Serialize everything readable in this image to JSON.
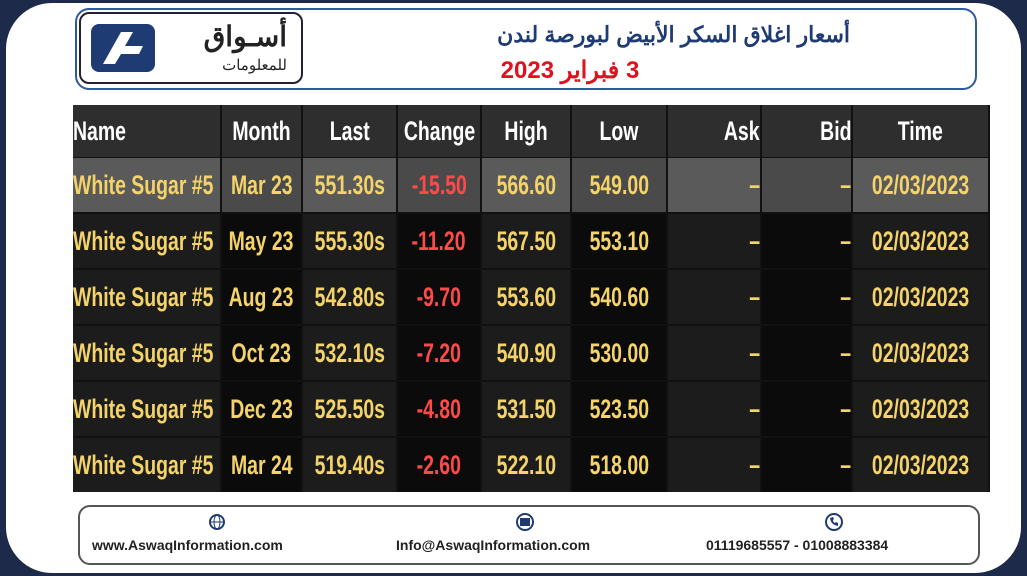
{
  "header": {
    "title": "أسعار اغلاق السكر الأبيض لبورصة لندن",
    "date": "3 فبراير 2023"
  },
  "logo": {
    "name": "أسـواق",
    "subtitle": "للمعلومات"
  },
  "table": {
    "columns": [
      "Name",
      "Month",
      "Last",
      "Change",
      "High",
      "Low",
      "Ask",
      "Bid",
      "Time"
    ],
    "rows": [
      [
        "White Sugar #5",
        "Mar 23",
        "551.30s",
        "-15.50",
        "566.60",
        "549.00",
        "–",
        "–",
        "02/03/2023"
      ],
      [
        "White Sugar #5",
        "May 23",
        "555.30s",
        "-11.20",
        "567.50",
        "553.10",
        "–",
        "–",
        "02/03/2023"
      ],
      [
        "White Sugar #5",
        "Aug 23",
        "542.80s",
        "-9.70",
        "553.60",
        "540.60",
        "–",
        "–",
        "02/03/2023"
      ],
      [
        "White Sugar #5",
        "Oct 23",
        "532.10s",
        "-7.20",
        "540.90",
        "530.00",
        "–",
        "–",
        "02/03/2023"
      ],
      [
        "White Sugar #5",
        "Dec 23",
        "525.50s",
        "-4.80",
        "531.50",
        "523.50",
        "–",
        "–",
        "02/03/2023"
      ],
      [
        "White Sugar #5",
        "Mar 24",
        "519.40s",
        "-2.60",
        "522.10",
        "518.00",
        "–",
        "–",
        "02/03/2023"
      ]
    ]
  },
  "footer": {
    "website": "www.AswaqInformation.com",
    "email": "Info@AswaqInformation.com",
    "phone": "01119685557 - 01008883384"
  }
}
